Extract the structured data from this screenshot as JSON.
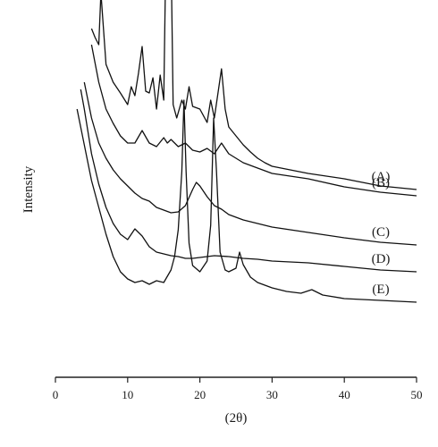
{
  "chart_data": {
    "type": "line",
    "title": "",
    "xlabel": "(2θ)",
    "ylabel": "Intensity",
    "xlim": [
      0,
      50
    ],
    "xticks": [
      0,
      10,
      20,
      30,
      40,
      50
    ],
    "grid": false,
    "legend": "none",
    "line_color": "#111111",
    "series": [
      {
        "name": "(A)",
        "x": [
          5,
          5.5,
          6,
          6.3,
          7,
          8,
          9,
          10,
          10.5,
          11,
          11.5,
          12,
          12.5,
          13,
          13.5,
          14,
          14.5,
          15,
          15.3,
          15.6,
          16,
          16.3,
          16.8,
          17.5,
          18,
          18.5,
          19,
          20,
          21,
          21.5,
          22,
          23,
          23.5,
          24,
          25,
          26,
          27,
          28,
          29,
          30,
          35,
          40,
          45,
          50
        ],
        "y": [
          390,
          380,
          372,
          430,
          350,
          330,
          318,
          305,
          325,
          315,
          340,
          370,
          320,
          318,
          335,
          300,
          338,
          310,
          478,
          485,
          478,
          305,
          290,
          310,
          300,
          325,
          303,
          300,
          285,
          310,
          290,
          345,
          300,
          280,
          270,
          260,
          252,
          245,
          240,
          236,
          228,
          222,
          214,
          210
        ]
      },
      {
        "name": "(B)",
        "x": [
          5,
          6,
          7,
          8,
          9,
          10,
          11,
          12,
          13,
          14,
          15,
          15.5,
          16,
          17,
          18,
          19,
          20,
          21,
          22,
          23,
          24,
          26,
          28,
          30,
          35,
          40,
          45,
          50
        ],
        "y": [
          372,
          330,
          300,
          284,
          270,
          262,
          262,
          276,
          262,
          258,
          268,
          262,
          266,
          258,
          262,
          254,
          252,
          256,
          250,
          262,
          250,
          240,
          234,
          228,
          222,
          213,
          207,
          203
        ]
      },
      {
        "name": "(C)",
        "x": [
          4,
          5,
          6,
          7,
          8,
          9,
          10,
          11,
          12,
          13,
          14,
          15,
          16,
          17,
          18,
          19,
          19.5,
          20,
          21,
          22,
          23,
          24,
          26,
          28,
          30,
          35,
          40,
          45,
          50
        ],
        "y": [
          330,
          290,
          262,
          245,
          232,
          222,
          214,
          206,
          200,
          197,
          190,
          187,
          184,
          185,
          192,
          210,
          218,
          214,
          202,
          192,
          188,
          182,
          176,
          172,
          168,
          162,
          156,
          151,
          148
        ]
      },
      {
        "name": "(D)",
        "x": [
          3.5,
          4,
          5,
          6,
          7,
          8,
          9,
          10,
          11,
          12,
          13,
          14,
          15,
          16,
          17,
          18,
          19,
          20,
          22,
          24,
          26,
          28,
          30,
          35,
          40,
          45,
          50
        ],
        "y": [
          322,
          300,
          250,
          216,
          190,
          172,
          160,
          154,
          166,
          158,
          146,
          140,
          138,
          136,
          135,
          133,
          133,
          134,
          136,
          135,
          133,
          132,
          130,
          128,
          124,
          120,
          118
        ]
      },
      {
        "name": "(E)",
        "x": [
          3,
          4,
          5,
          6,
          7,
          8,
          9,
          10,
          11,
          12,
          13,
          14,
          15,
          16,
          16.5,
          17,
          17.5,
          17.8,
          18.1,
          18.5,
          19,
          20,
          21,
          21.5,
          21.9,
          22.3,
          22.8,
          23.5,
          24,
          25,
          25.5,
          26,
          27,
          28,
          30,
          32,
          34,
          35.5,
          37,
          40,
          45,
          50
        ],
        "y": [
          300,
          260,
          220,
          190,
          160,
          135,
          118,
          110,
          106,
          108,
          104,
          108,
          106,
          120,
          135,
          165,
          230,
          310,
          230,
          150,
          125,
          118,
          130,
          170,
          290,
          230,
          140,
          120,
          118,
          122,
          140,
          126,
          112,
          106,
          100,
          96,
          94,
          98,
          92,
          88,
          86,
          84
        ]
      }
    ]
  }
}
